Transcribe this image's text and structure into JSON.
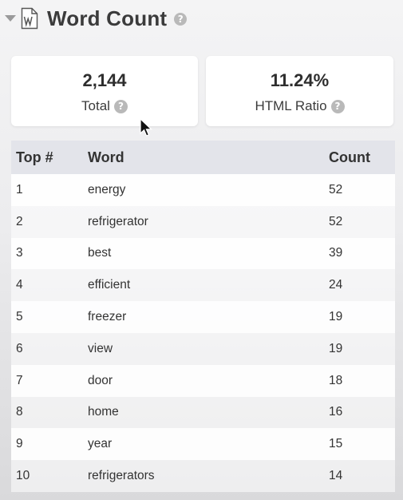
{
  "header": {
    "title": "Word Count",
    "icons": [
      "chevron-down-icon",
      "word-document-icon",
      "help-icon"
    ]
  },
  "stats": {
    "total": {
      "value": "2,144",
      "label": "Total"
    },
    "html_ratio": {
      "value": "11.24%",
      "label": "HTML Ratio"
    }
  },
  "table": {
    "columns": [
      "Top #",
      "Word",
      "Count"
    ],
    "rows": [
      {
        "rank": "1",
        "word": "energy",
        "count": "52"
      },
      {
        "rank": "2",
        "word": "refrigerator",
        "count": "52"
      },
      {
        "rank": "3",
        "word": "best",
        "count": "39"
      },
      {
        "rank": "4",
        "word": "efficient",
        "count": "24"
      },
      {
        "rank": "5",
        "word": "freezer",
        "count": "19"
      },
      {
        "rank": "6",
        "word": "view",
        "count": "19"
      },
      {
        "rank": "7",
        "word": "door",
        "count": "18"
      },
      {
        "rank": "8",
        "word": "home",
        "count": "16"
      },
      {
        "rank": "9",
        "word": "year",
        "count": "15"
      },
      {
        "rank": "10",
        "word": "refrigerators",
        "count": "14"
      }
    ]
  },
  "colors": {
    "header_row": "#e3e4ea",
    "help_icon": "#b9b9b9",
    "title_text": "#3b3b3b"
  }
}
